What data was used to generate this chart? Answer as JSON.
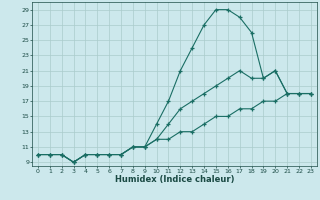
{
  "xlabel": "Humidex (Indice chaleur)",
  "bg_color": "#cce8ec",
  "grid_color": "#aacccc",
  "line_color": "#1a6e64",
  "xlim": [
    -0.5,
    23.5
  ],
  "ylim": [
    8.5,
    30.0
  ],
  "yticks": [
    9,
    11,
    13,
    15,
    17,
    19,
    21,
    23,
    25,
    27,
    29
  ],
  "xticks": [
    0,
    1,
    2,
    3,
    4,
    5,
    6,
    7,
    8,
    9,
    10,
    11,
    12,
    13,
    14,
    15,
    16,
    17,
    18,
    19,
    20,
    21,
    22,
    23
  ],
  "series": [
    {
      "x": [
        0,
        1,
        2,
        3,
        4,
        5,
        6,
        7,
        8,
        9,
        10,
        11,
        12,
        13,
        14,
        15,
        16,
        17,
        18,
        19,
        20,
        21,
        22,
        23
      ],
      "y": [
        10,
        10,
        10,
        9,
        10,
        10,
        10,
        10,
        11,
        11,
        14,
        17,
        21,
        24,
        27,
        29,
        29,
        28,
        26,
        20,
        21,
        18,
        18,
        18
      ]
    },
    {
      "x": [
        0,
        1,
        2,
        3,
        4,
        5,
        6,
        7,
        8,
        9,
        10,
        11,
        12,
        13,
        14,
        15,
        16,
        17,
        18,
        19,
        20,
        21,
        22,
        23
      ],
      "y": [
        10,
        10,
        10,
        9,
        10,
        10,
        10,
        10,
        11,
        11,
        12,
        14,
        16,
        17,
        18,
        19,
        20,
        21,
        20,
        20,
        21,
        18,
        18,
        18
      ]
    },
    {
      "x": [
        0,
        1,
        2,
        3,
        4,
        5,
        6,
        7,
        8,
        9,
        10,
        11,
        12,
        13,
        14,
        15,
        16,
        17,
        18,
        19,
        20,
        21,
        22,
        23
      ],
      "y": [
        10,
        10,
        10,
        9,
        10,
        10,
        10,
        10,
        11,
        11,
        12,
        12,
        13,
        13,
        14,
        15,
        15,
        16,
        16,
        17,
        17,
        18,
        18,
        18
      ]
    }
  ]
}
